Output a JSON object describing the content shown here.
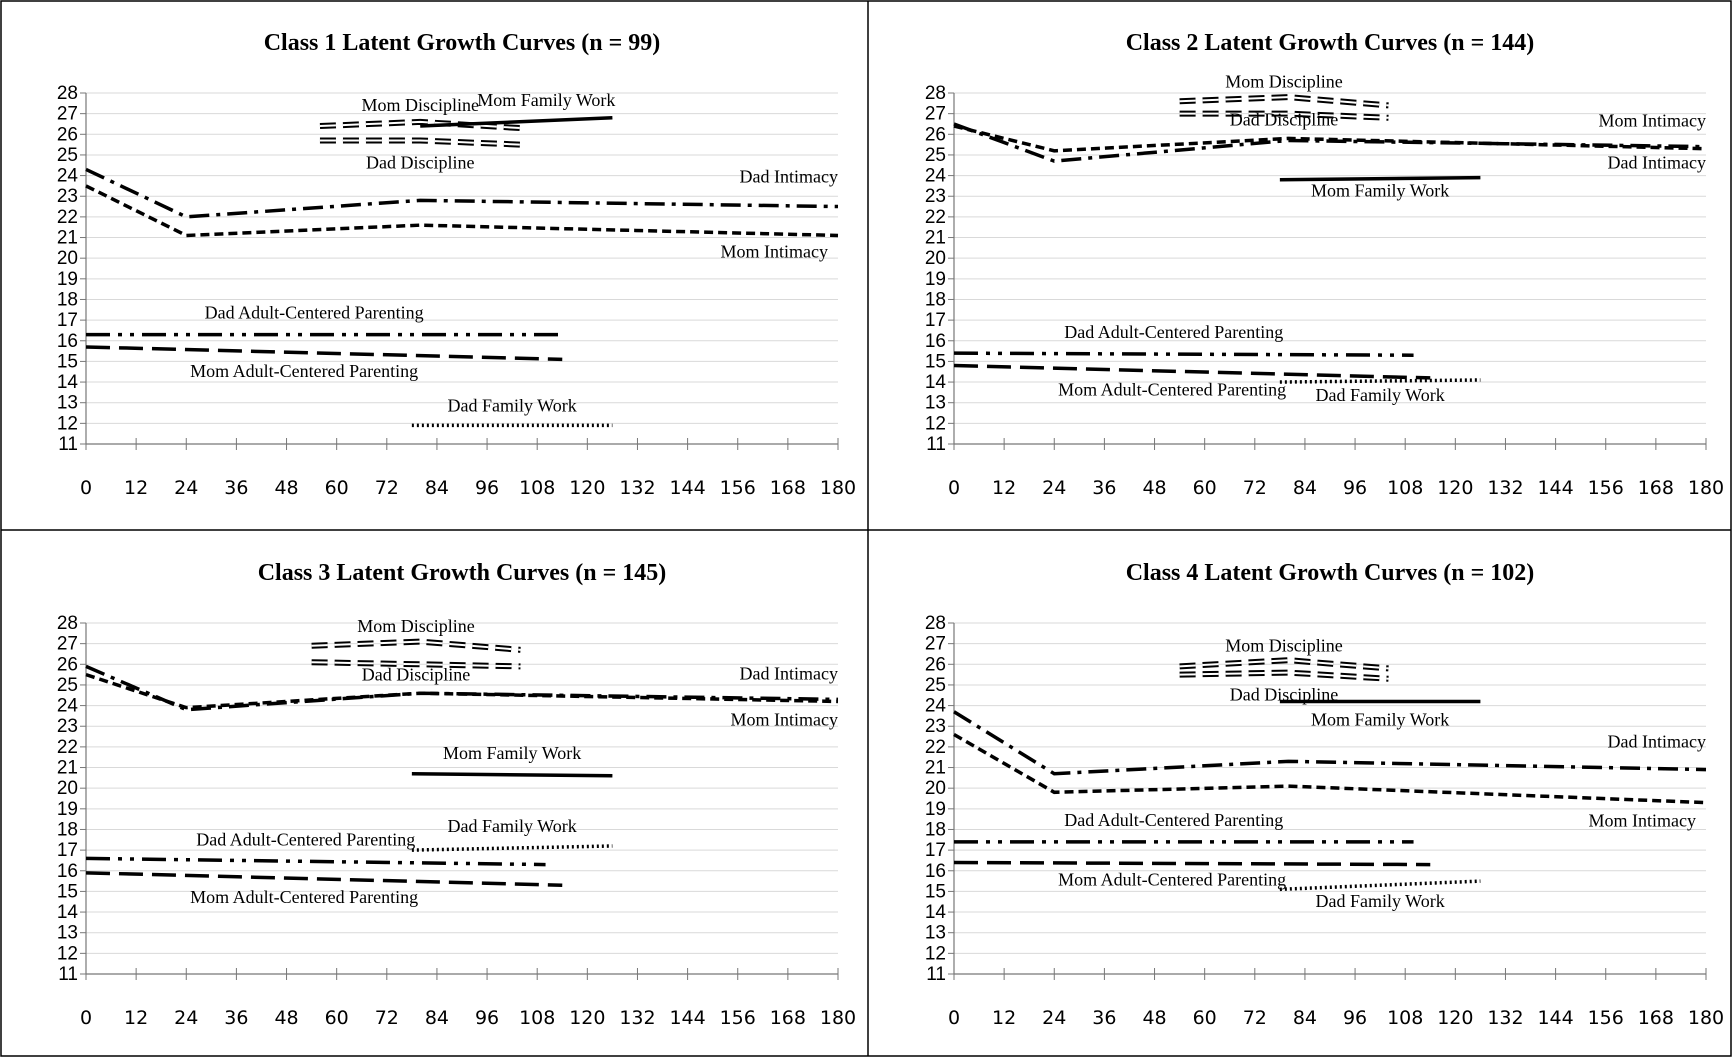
{
  "chart_data": [
    {
      "type": "line",
      "title": "Class 1 Latent Growth Curves (n = 99)",
      "xlim": [
        0,
        180
      ],
      "xticks": [
        0,
        12,
        24,
        36,
        48,
        60,
        72,
        84,
        96,
        108,
        120,
        132,
        144,
        156,
        168,
        180
      ],
      "ylim": [
        11,
        28
      ],
      "yticks": [
        11,
        12,
        13,
        14,
        15,
        16,
        17,
        18,
        19,
        20,
        21,
        22,
        23,
        24,
        25,
        26,
        27,
        28
      ],
      "grid": true,
      "series": [
        {
          "name": "Mom Discipline",
          "style": "double",
          "color": "#000000",
          "x": [
            56,
            80,
            104
          ],
          "values": [
            26.4,
            26.6,
            26.3
          ]
        },
        {
          "name": "Dad Discipline",
          "style": "double",
          "color": "#000000",
          "x": [
            56,
            80,
            104
          ],
          "values": [
            25.7,
            25.7,
            25.5
          ]
        },
        {
          "name": "Mom Family Work",
          "style": "solid",
          "color": "#000000",
          "x": [
            80,
            126
          ],
          "values": [
            26.4,
            26.8
          ]
        },
        {
          "name": "Dad Intimacy",
          "style": "dash-dot",
          "color": "#000000",
          "x": [
            0,
            24,
            80,
            180
          ],
          "values": [
            24.3,
            22.0,
            22.8,
            22.5
          ]
        },
        {
          "name": "Mom Intimacy",
          "style": "dash",
          "color": "#000000",
          "x": [
            0,
            24,
            80,
            180
          ],
          "values": [
            23.5,
            21.1,
            21.6,
            21.1
          ]
        },
        {
          "name": "Dad Adult-Centered Parenting",
          "style": "long-dash-dot-dot",
          "color": "#000000",
          "x": [
            0,
            114
          ],
          "values": [
            16.3,
            16.3
          ]
        },
        {
          "name": "Mom Adult-Centered Parenting",
          "style": "long-dash",
          "color": "#000000",
          "x": [
            0,
            114
          ],
          "values": [
            15.7,
            15.1
          ]
        },
        {
          "name": "Dad Family Work",
          "style": "dot",
          "color": "#000000",
          "x": [
            78,
            126
          ],
          "values": [
            11.9,
            11.9
          ]
        }
      ]
    },
    {
      "type": "line",
      "title": "Class 2 Latent Growth Curves (n = 144)",
      "xlim": [
        0,
        180
      ],
      "xticks": [
        0,
        12,
        24,
        36,
        48,
        60,
        72,
        84,
        96,
        108,
        120,
        132,
        144,
        156,
        168,
        180
      ],
      "ylim": [
        11,
        28
      ],
      "yticks": [
        11,
        12,
        13,
        14,
        15,
        16,
        17,
        18,
        19,
        20,
        21,
        22,
        23,
        24,
        25,
        26,
        27,
        28
      ],
      "grid": true,
      "series": [
        {
          "name": "Mom Discipline",
          "style": "double",
          "color": "#000000",
          "x": [
            54,
            80,
            104
          ],
          "values": [
            27.6,
            27.8,
            27.4
          ]
        },
        {
          "name": "Dad Discipline",
          "style": "double",
          "color": "#000000",
          "x": [
            54,
            80,
            104
          ],
          "values": [
            27.0,
            27.0,
            26.8
          ]
        },
        {
          "name": "Mom Family Work",
          "style": "solid",
          "color": "#000000",
          "x": [
            78,
            126
          ],
          "values": [
            23.8,
            23.9
          ]
        },
        {
          "name": "Dad Intimacy",
          "style": "dash-dot",
          "color": "#000000",
          "x": [
            0,
            24,
            80,
            180
          ],
          "values": [
            26.5,
            24.7,
            25.7,
            25.4
          ]
        },
        {
          "name": "Mom Intimacy",
          "style": "dash",
          "color": "#000000",
          "x": [
            0,
            24,
            80,
            180
          ],
          "values": [
            26.4,
            25.2,
            25.8,
            25.3
          ]
        },
        {
          "name": "Dad Adult-Centered Parenting",
          "style": "long-dash-dot-dot",
          "color": "#000000",
          "x": [
            0,
            110
          ],
          "values": [
            15.4,
            15.3
          ]
        },
        {
          "name": "Mom Adult-Centered Parenting",
          "style": "long-dash",
          "color": "#000000",
          "x": [
            0,
            114
          ],
          "values": [
            14.8,
            14.2
          ]
        },
        {
          "name": "Dad Family Work",
          "style": "dot",
          "color": "#000000",
          "x": [
            78,
            126
          ],
          "values": [
            14.0,
            14.1
          ]
        }
      ]
    },
    {
      "type": "line",
      "title": "Class 3 Latent Growth Curves (n = 145)",
      "xlim": [
        0,
        180
      ],
      "xticks": [
        0,
        12,
        24,
        36,
        48,
        60,
        72,
        84,
        96,
        108,
        120,
        132,
        144,
        156,
        168,
        180
      ],
      "ylim": [
        11,
        28
      ],
      "yticks": [
        11,
        12,
        13,
        14,
        15,
        16,
        17,
        18,
        19,
        20,
        21,
        22,
        23,
        24,
        25,
        26,
        27,
        28
      ],
      "grid": true,
      "series": [
        {
          "name": "Mom Discipline",
          "style": "double",
          "color": "#000000",
          "x": [
            54,
            80,
            104
          ],
          "values": [
            26.9,
            27.1,
            26.7
          ]
        },
        {
          "name": "Dad Discipline",
          "style": "double",
          "color": "#000000",
          "x": [
            54,
            80,
            104
          ],
          "values": [
            26.1,
            26.0,
            25.9
          ]
        },
        {
          "name": "Mom Family Work",
          "style": "solid",
          "color": "#000000",
          "x": [
            78,
            126
          ],
          "values": [
            20.7,
            20.6
          ]
        },
        {
          "name": "Dad Intimacy",
          "style": "dash-dot",
          "color": "#000000",
          "x": [
            0,
            24,
            80,
            180
          ],
          "values": [
            25.9,
            23.8,
            24.6,
            24.3
          ]
        },
        {
          "name": "Mom Intimacy",
          "style": "dash",
          "color": "#000000",
          "x": [
            0,
            24,
            80,
            180
          ],
          "values": [
            25.5,
            23.9,
            24.6,
            24.2
          ]
        },
        {
          "name": "Dad Adult-Centered Parenting",
          "style": "long-dash-dot-dot",
          "color": "#000000",
          "x": [
            0,
            110
          ],
          "values": [
            16.6,
            16.3
          ]
        },
        {
          "name": "Mom Adult-Centered Parenting",
          "style": "long-dash",
          "color": "#000000",
          "x": [
            0,
            114
          ],
          "values": [
            15.9,
            15.3
          ]
        },
        {
          "name": "Dad Family Work",
          "style": "dot",
          "color": "#000000",
          "x": [
            78,
            126
          ],
          "values": [
            17.0,
            17.2
          ]
        }
      ]
    },
    {
      "type": "line",
      "title": "Class 4 Latent Growth Curves (n = 102)",
      "xlim": [
        0,
        180
      ],
      "xticks": [
        0,
        12,
        24,
        36,
        48,
        60,
        72,
        84,
        96,
        108,
        120,
        132,
        144,
        156,
        168,
        180
      ],
      "ylim": [
        11,
        28
      ],
      "yticks": [
        11,
        12,
        13,
        14,
        15,
        16,
        17,
        18,
        19,
        20,
        21,
        22,
        23,
        24,
        25,
        26,
        27,
        28
      ],
      "grid": true,
      "series": [
        {
          "name": "Mom Discipline",
          "style": "double",
          "color": "#000000",
          "x": [
            54,
            80,
            104
          ],
          "values": [
            25.9,
            26.2,
            25.8
          ]
        },
        {
          "name": "Dad Discipline",
          "style": "double",
          "color": "#000000",
          "x": [
            54,
            80,
            104
          ],
          "values": [
            25.5,
            25.6,
            25.3
          ]
        },
        {
          "name": "Mom Family Work",
          "style": "solid",
          "color": "#000000",
          "x": [
            78,
            126
          ],
          "values": [
            24.2,
            24.2
          ]
        },
        {
          "name": "Dad Intimacy",
          "style": "dash-dot",
          "color": "#000000",
          "x": [
            0,
            24,
            80,
            180
          ],
          "values": [
            23.7,
            20.7,
            21.3,
            20.9
          ]
        },
        {
          "name": "Mom Intimacy",
          "style": "dash",
          "color": "#000000",
          "x": [
            0,
            24,
            80,
            180
          ],
          "values": [
            22.6,
            19.8,
            20.1,
            19.3
          ]
        },
        {
          "name": "Dad Adult-Centered Parenting",
          "style": "long-dash-dot-dot",
          "color": "#000000",
          "x": [
            0,
            110
          ],
          "values": [
            17.4,
            17.4
          ]
        },
        {
          "name": "Mom Adult-Centered Parenting",
          "style": "long-dash",
          "color": "#000000",
          "x": [
            0,
            114
          ],
          "values": [
            16.4,
            16.3
          ]
        },
        {
          "name": "Dad Family Work",
          "style": "dot",
          "color": "#000000",
          "x": [
            78,
            126
          ],
          "values": [
            15.1,
            15.5
          ]
        }
      ]
    }
  ]
}
